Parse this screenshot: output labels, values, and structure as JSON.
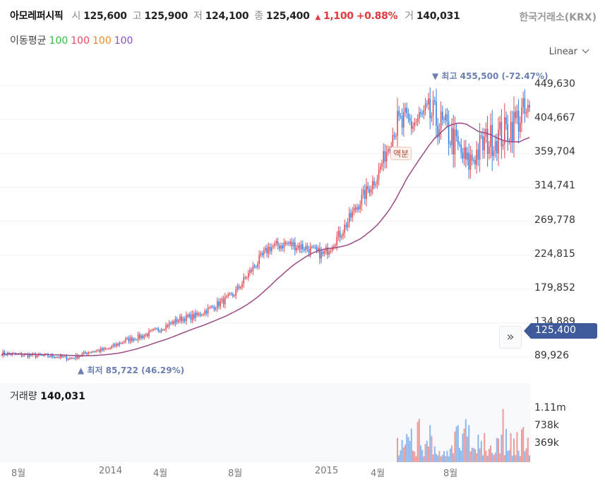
{
  "header": {
    "name": "아모레퍼시픽",
    "open_label": "시",
    "open": "125,600",
    "high_label": "고",
    "high": "125,900",
    "low_label": "저",
    "low": "124,100",
    "close_label": "종",
    "close": "125,400",
    "change_arrow": "▲",
    "change": "1,100",
    "change_pct": "+0.88%",
    "volume_label": "거",
    "volume": "140,031",
    "exchange": "한국거래소(KRX)"
  },
  "moving_average": {
    "label": "이동평균",
    "periods": [
      {
        "value": "100",
        "color": "#2fbf3a"
      },
      {
        "value": "100",
        "color": "#e84a5f"
      },
      {
        "value": "100",
        "color": "#f08a24"
      },
      {
        "value": "100",
        "color": "#8a4fd8"
      }
    ]
  },
  "scale_selector": "Linear",
  "colors": {
    "up": "#e04b55",
    "down": "#2f7fe0",
    "ma": "#9b4a86",
    "tag": "#3f5a9a"
  },
  "chart_data": {
    "type": "candlestick",
    "x_ticks": [
      "8월",
      "2014",
      "4월",
      "8월",
      "2015",
      "4월",
      "8월"
    ],
    "y_ticks": [
      "449,630",
      "404,667",
      "359,704",
      "314,741",
      "269,778",
      "224,815",
      "179,852",
      "134,889",
      "89,926"
    ],
    "ylim": [
      89926,
      449630
    ],
    "monthly_close": {
      "months": [
        "2013-07",
        "2013-08",
        "2013-09",
        "2013-10",
        "2013-11",
        "2013-12",
        "2014-01",
        "2014-02",
        "2014-03",
        "2014-04",
        "2014-05",
        "2014-06",
        "2014-07",
        "2014-08",
        "2014-09",
        "2014-10",
        "2014-11",
        "2014-12",
        "2015-01",
        "2015-02",
        "2015-03",
        "2015-04",
        "2015-05",
        "2015-06",
        "2015-07",
        "2015-08",
        "2015-09",
        "2015-10",
        "2015-11",
        "2015-12"
      ],
      "values": [
        95000,
        93000,
        92000,
        91000,
        88000,
        97000,
        100000,
        112000,
        118000,
        128000,
        140000,
        145000,
        158000,
        172000,
        205000,
        235000,
        240000,
        235000,
        225000,
        255000,
        295000,
        330000,
        395000,
        400000,
        410000,
        385000,
        345000,
        375000,
        385000,
        410000
      ]
    },
    "current_price": "125,400",
    "max_annotation": "▼ 최고 455,500 (-72.47%)",
    "min_annotation": "▲ 최저 85,722 (46.29%)",
    "event_label": "액분",
    "volume": {
      "title": "거래량",
      "value": "140,031",
      "y_ticks": [
        "1.11m",
        "738k",
        "369k"
      ]
    }
  }
}
